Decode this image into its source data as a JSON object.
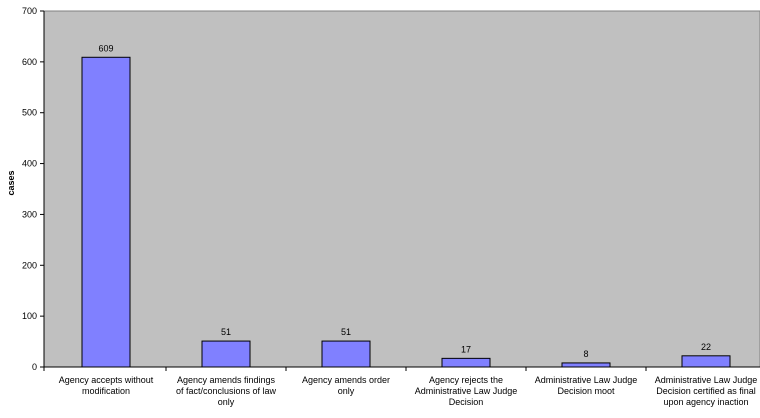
{
  "chart_data": {
    "type": "bar",
    "title": "",
    "xlabel": "",
    "ylabel": "cases",
    "ylim": [
      0,
      700
    ],
    "yticks": [
      0,
      100,
      200,
      300,
      400,
      500,
      600,
      700
    ],
    "categories": [
      [
        "Agency accepts without",
        "modification"
      ],
      [
        "Agency amends findings",
        "of fact/conclusions of law",
        "only"
      ],
      [
        "Agency amends order",
        "only"
      ],
      [
        "Agency rejects the",
        "Administrative Law Judge",
        "Decision"
      ],
      [
        "Administrative Law Judge",
        "Decision moot"
      ],
      [
        "Administrative Law Judge",
        "Decision certified as final",
        "upon agency inaction"
      ]
    ],
    "values": [
      609,
      51,
      51,
      17,
      8,
      22
    ],
    "grid": false,
    "legend": "none",
    "colors": {
      "plot_background": "#c0c0c0",
      "bar_fill": "#8080ff",
      "bar_stroke": "#000000"
    }
  }
}
